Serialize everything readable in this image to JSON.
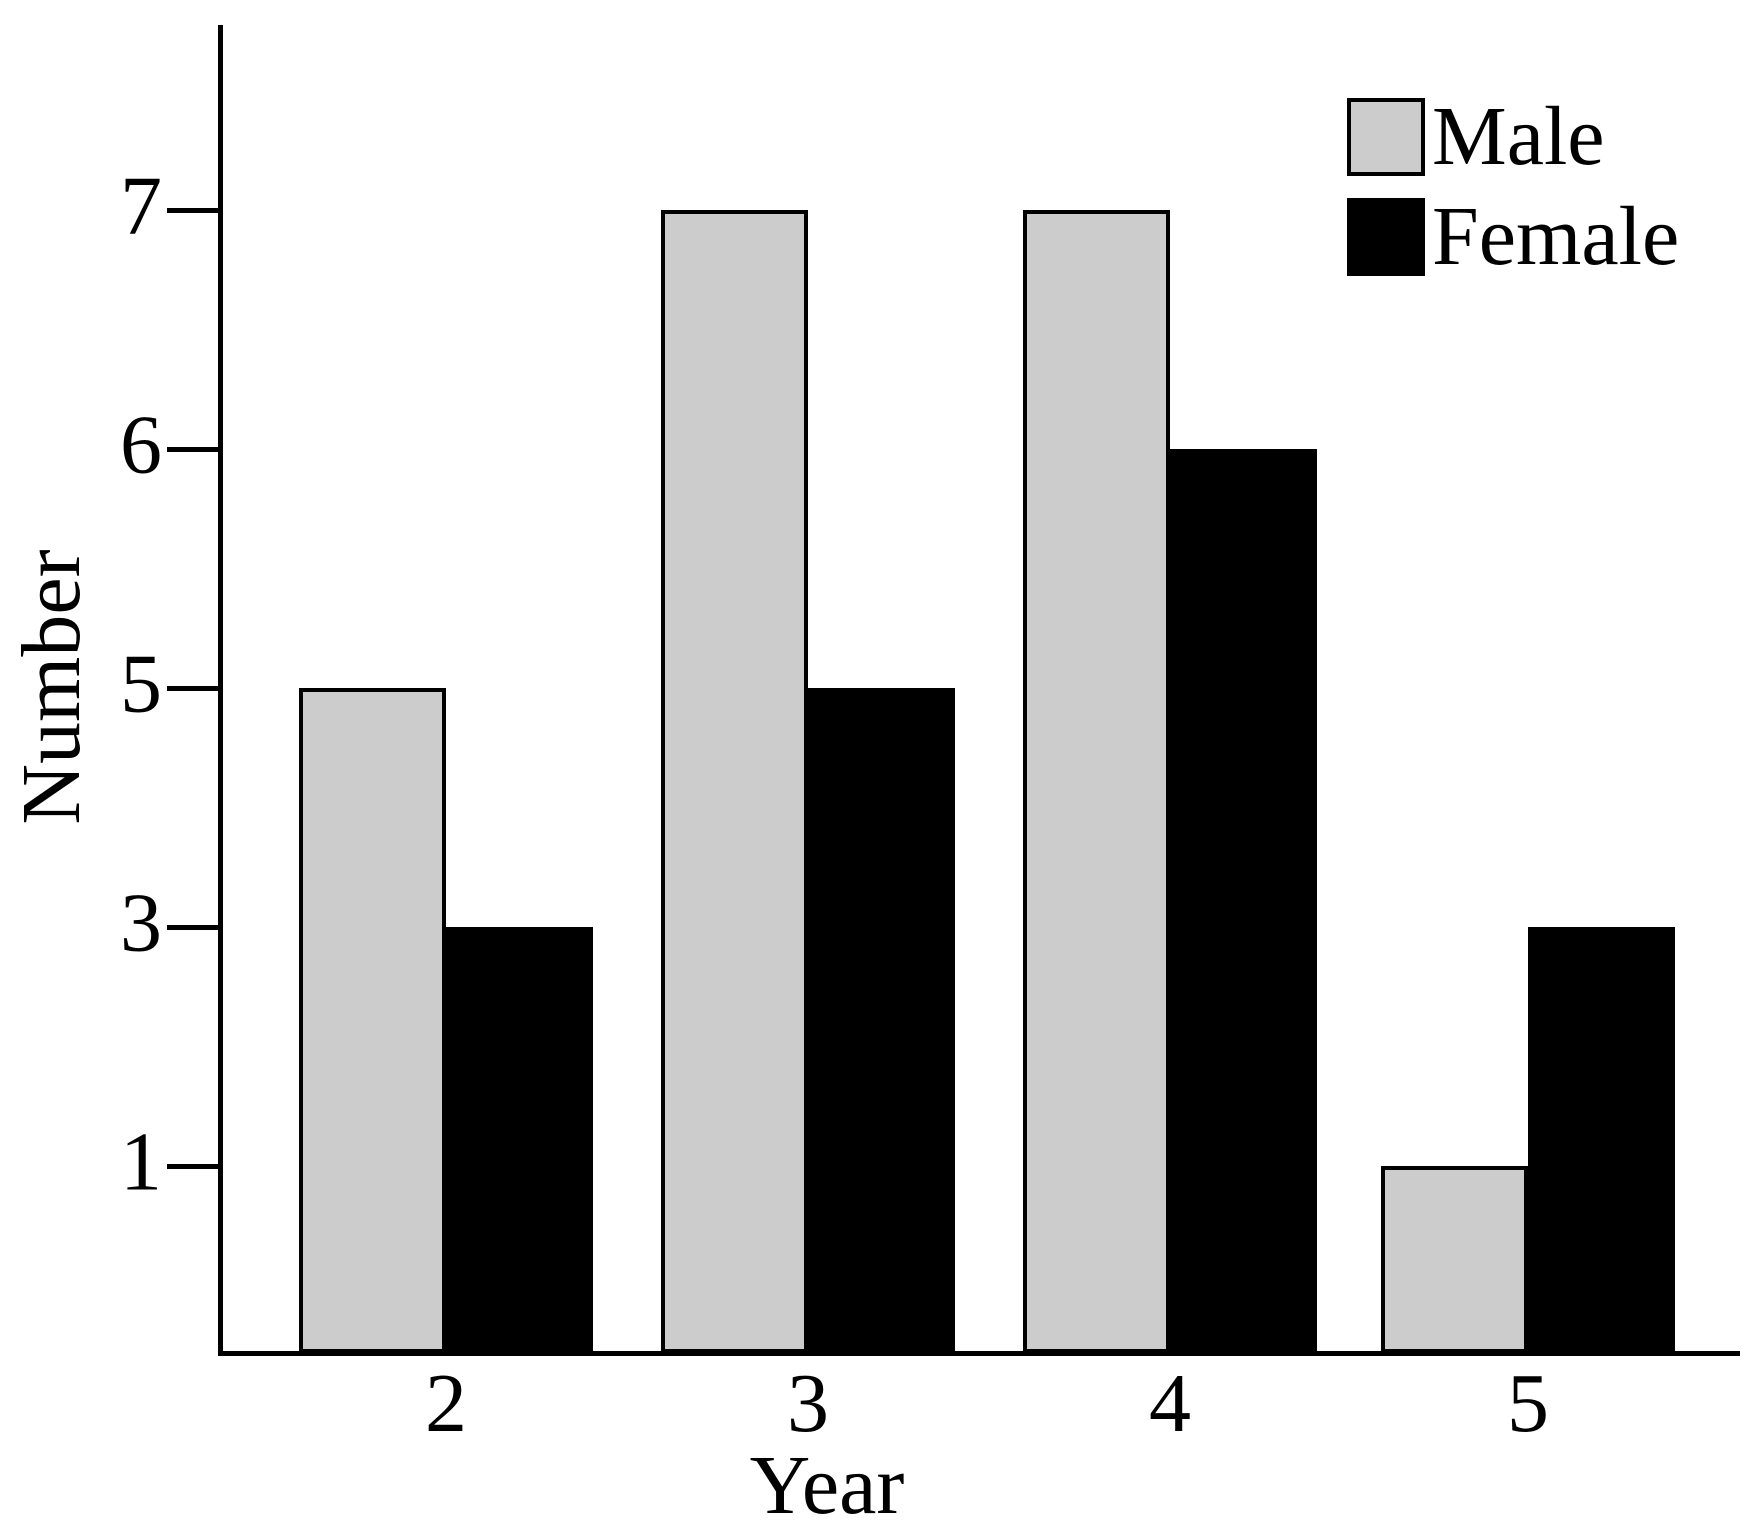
{
  "chart_data": {
    "type": "bar",
    "categories": [
      "2",
      "3",
      "4",
      "5"
    ],
    "series": [
      {
        "name": "Male",
        "color": "#cccccc",
        "values": [
          5,
          7,
          7,
          1
        ]
      },
      {
        "name": "Female",
        "color": "#000000",
        "values": [
          3,
          5,
          6,
          3
        ]
      }
    ],
    "xlabel": "Year",
    "ylabel": "Number",
    "y_ticks": [
      7,
      6,
      5,
      3,
      1
    ],
    "bar_outline_color": "#000000",
    "layout": {
      "legend_position": "top-right",
      "grid": false,
      "y_axis_note": "tick marks equally spaced top-to-bottom (nonlinear scale); bar tops align with ticks of equal value"
    }
  }
}
